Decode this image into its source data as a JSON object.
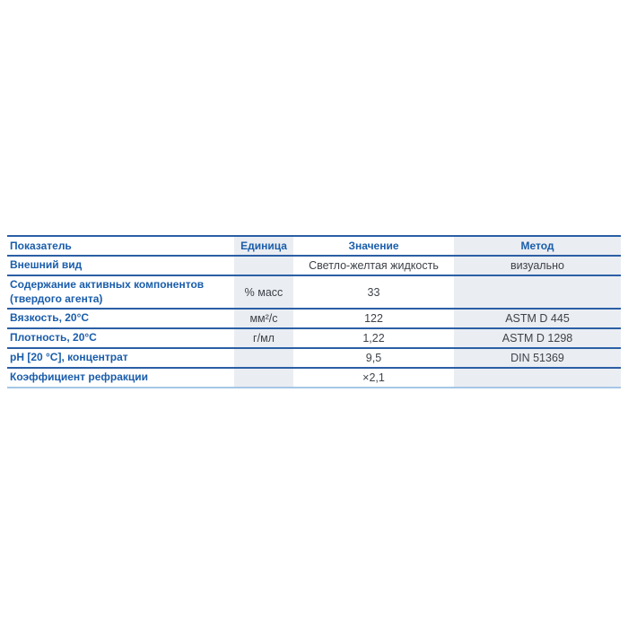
{
  "table": {
    "columns": [
      {
        "label": "Показатель"
      },
      {
        "label": "Единица"
      },
      {
        "label": "Значение"
      },
      {
        "label": "Метод"
      }
    ],
    "rows": [
      {
        "indicator": "Внешний вид",
        "unit": "",
        "value": "Светло-желтая жидкость",
        "method": "визуально"
      },
      {
        "indicator": "Содержание активных компонентов (твердого агента)",
        "unit": "% масс",
        "value": "33",
        "method": ""
      },
      {
        "indicator": "Вязкость, 20°C",
        "unit": "мм²/с",
        "value": "122",
        "method": "ASTM D 445"
      },
      {
        "indicator": "Плотность, 20°C",
        "unit": "г/мл",
        "value": "1,22",
        "method": "ASTM D 1298"
      },
      {
        "indicator": "pH [20 °C], концентрат",
        "unit": "",
        "value": "9,5",
        "method": "DIN 51369"
      },
      {
        "indicator": "Коэффициент рефракции",
        "unit": "",
        "value": "×2,1",
        "method": ""
      }
    ],
    "colors": {
      "header_text": "#1a5dab",
      "indicator_text": "#1a5dab",
      "cell_text": "#3e4349",
      "shaded_column_bg": "#eaedf2",
      "row_border": "#2b5fa5",
      "bottom_border": "#a5c6e6",
      "page_bg": "#ffffff"
    }
  }
}
